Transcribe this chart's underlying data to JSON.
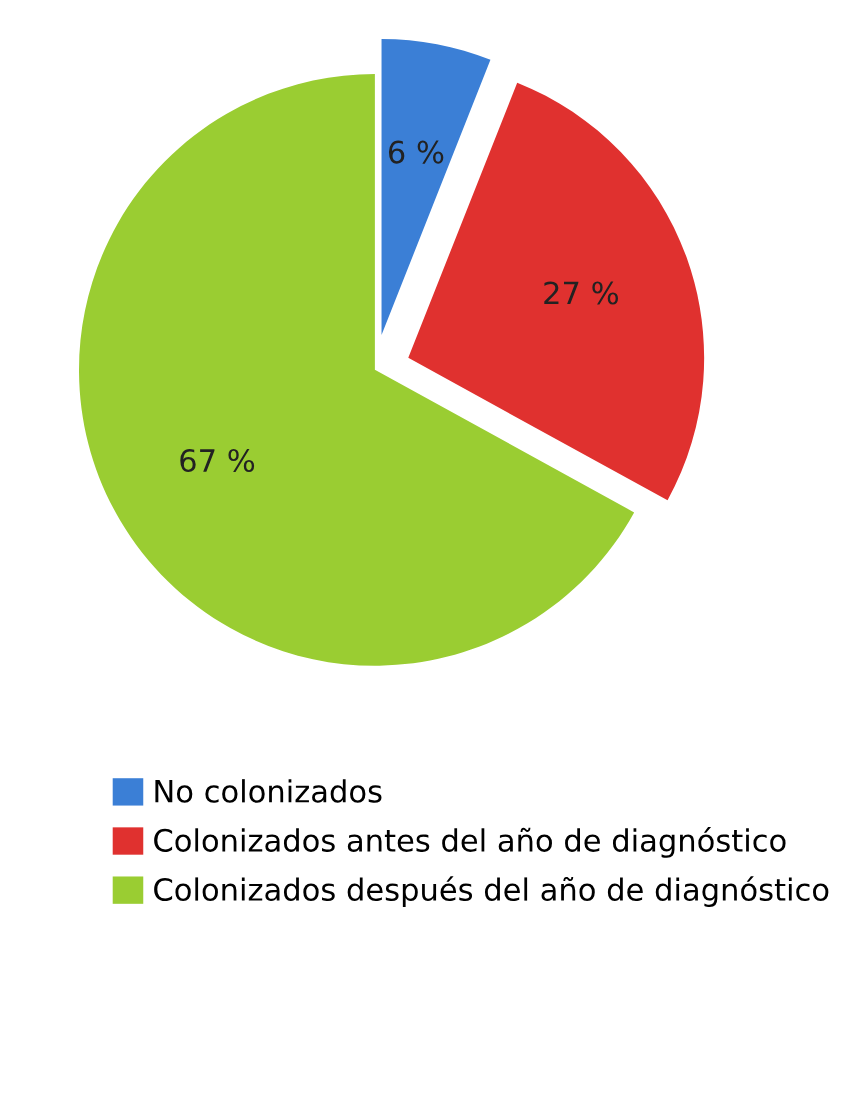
{
  "chart_data": {
    "type": "pie",
    "categories": [
      "No colonizados",
      "Colonizados antes del año de diagnóstico",
      "Colonizados después del año de diagnóstico"
    ],
    "values": [
      6,
      27,
      67
    ],
    "colors": [
      "#3b7fd6",
      "#e0312f",
      "#9acd32"
    ],
    "value_labels": [
      "6 %",
      "27 %",
      "67 %"
    ],
    "legend": "bottom"
  }
}
